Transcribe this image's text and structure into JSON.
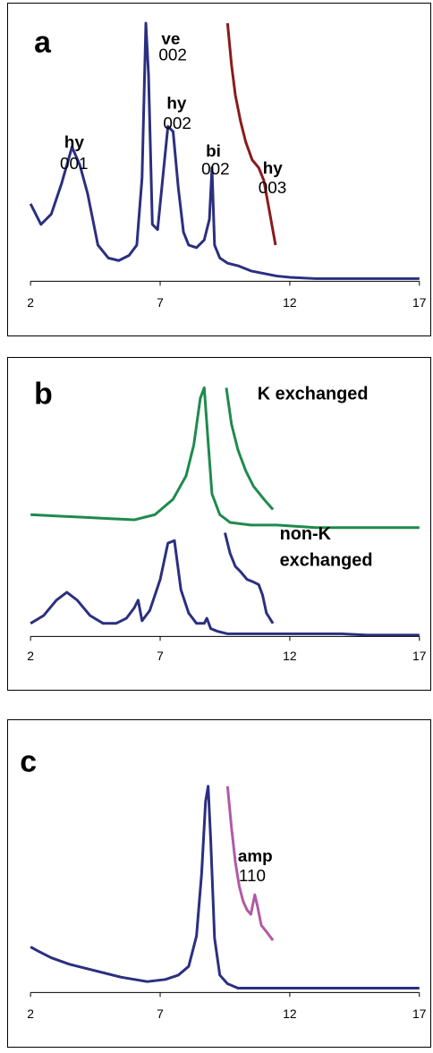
{
  "chart_data": [
    {
      "panel_letter": "a",
      "type": "line",
      "xlim": [
        2,
        17
      ],
      "x_ticks": [
        "2",
        "7",
        "12",
        "17"
      ],
      "grid": false,
      "series": [
        {
          "color": "#2b2f7f",
          "x": [
            2.0,
            2.4,
            2.8,
            3.2,
            3.6,
            3.9,
            4.2,
            4.6,
            5.0,
            5.4,
            5.8,
            6.1,
            6.3,
            6.45,
            6.55,
            6.7,
            6.9,
            7.1,
            7.3,
            7.5,
            7.7,
            7.9,
            8.1,
            8.4,
            8.7,
            8.9,
            9.0,
            9.1,
            9.3,
            9.6,
            10.0,
            10.5,
            11.0,
            11.5,
            12.0,
            13.0,
            14.0,
            15.0,
            16.0,
            17.0
          ],
          "y": [
            0.3,
            0.22,
            0.26,
            0.38,
            0.52,
            0.45,
            0.34,
            0.14,
            0.09,
            0.08,
            0.1,
            0.14,
            0.4,
            1.0,
            0.8,
            0.22,
            0.2,
            0.4,
            0.6,
            0.58,
            0.36,
            0.19,
            0.14,
            0.13,
            0.16,
            0.24,
            0.44,
            0.14,
            0.09,
            0.07,
            0.06,
            0.04,
            0.03,
            0.02,
            0.015,
            0.01,
            0.01,
            0.01,
            0.01,
            0.01
          ]
        },
        {
          "color": "#8b1a1a",
          "x": [
            9.6,
            9.75,
            9.9,
            10.1,
            10.3,
            10.55,
            10.8,
            11.0,
            11.2,
            11.45
          ],
          "y": [
            1.0,
            0.84,
            0.72,
            0.62,
            0.54,
            0.47,
            0.44,
            0.39,
            0.28,
            0.14
          ]
        }
      ],
      "annotations": [
        {
          "line1": "hy",
          "line2": "001"
        },
        {
          "line1": "ve",
          "line2": "002"
        },
        {
          "line1": "hy",
          "line2": "002"
        },
        {
          "line1": "bi",
          "line2": "002"
        },
        {
          "line1": "hy",
          "line2": "003"
        }
      ]
    },
    {
      "panel_letter": "b",
      "type": "line",
      "xlim": [
        2,
        17
      ],
      "x_ticks": [
        "2",
        "7",
        "12",
        "17"
      ],
      "grid": false,
      "series": [
        {
          "color": "#1f8a4c",
          "x": [
            2.0,
            3.0,
            4.0,
            5.0,
            6.0,
            6.8,
            7.5,
            8.0,
            8.3,
            8.55,
            8.7,
            8.85,
            9.0,
            9.3,
            9.7,
            10.5,
            11.5,
            13.0,
            15.0,
            17.0
          ],
          "y": [
            0.47,
            0.465,
            0.46,
            0.455,
            0.45,
            0.47,
            0.53,
            0.62,
            0.74,
            0.92,
            0.96,
            0.75,
            0.55,
            0.47,
            0.44,
            0.43,
            0.43,
            0.42,
            0.42,
            0.42
          ]
        },
        {
          "color": "#1f8a4c",
          "x": [
            9.55,
            9.75,
            10.0,
            10.3,
            10.6,
            11.0,
            11.35
          ],
          "y": [
            0.96,
            0.82,
            0.72,
            0.64,
            0.58,
            0.53,
            0.49
          ]
        },
        {
          "color": "#2b2f7f",
          "x": [
            2.0,
            2.5,
            3.0,
            3.4,
            3.8,
            4.3,
            4.8,
            5.3,
            5.7,
            6.0,
            6.15,
            6.3,
            6.6,
            7.0,
            7.3,
            7.55,
            7.8,
            8.1,
            8.4,
            8.7,
            8.8,
            8.95,
            9.2,
            9.6,
            10.0,
            11.0,
            12.0,
            13.0,
            14.0,
            15.0,
            16.0,
            17.0
          ],
          "y": [
            0.05,
            0.08,
            0.14,
            0.17,
            0.14,
            0.08,
            0.05,
            0.05,
            0.07,
            0.11,
            0.14,
            0.06,
            0.1,
            0.22,
            0.36,
            0.37,
            0.18,
            0.09,
            0.05,
            0.05,
            0.07,
            0.03,
            0.02,
            0.01,
            0.01,
            0.01,
            0.01,
            0.01,
            0.01,
            0.005,
            0.005,
            0.005
          ]
        },
        {
          "color": "#2b2f7f",
          "x": [
            9.5,
            9.7,
            9.9,
            10.1,
            10.35,
            10.6,
            10.8,
            10.95,
            11.1,
            11.35
          ],
          "y": [
            0.4,
            0.32,
            0.27,
            0.25,
            0.22,
            0.21,
            0.2,
            0.16,
            0.09,
            0.05
          ]
        }
      ],
      "labels": [
        "K exchanged",
        "non-K",
        "exchanged"
      ]
    },
    {
      "panel_letter": "c",
      "type": "line",
      "xlim": [
        2,
        17
      ],
      "x_ticks": [
        "2",
        "7",
        "12",
        "17"
      ],
      "grid": false,
      "series": [
        {
          "color": "#2b2f7f",
          "x": [
            2.0,
            2.3,
            2.8,
            3.5,
            4.5,
            5.5,
            6.5,
            7.2,
            7.7,
            8.1,
            8.4,
            8.6,
            8.75,
            8.85,
            8.95,
            9.1,
            9.3,
            9.6,
            10.0,
            11.0,
            12.0,
            13.0,
            14.0,
            15.0,
            16.0,
            17.0
          ],
          "y": [
            0.21,
            0.19,
            0.16,
            0.13,
            0.1,
            0.07,
            0.05,
            0.06,
            0.08,
            0.12,
            0.26,
            0.55,
            0.88,
            0.95,
            0.7,
            0.25,
            0.08,
            0.04,
            0.02,
            0.02,
            0.02,
            0.02,
            0.02,
            0.02,
            0.02,
            0.02
          ]
        },
        {
          "color": "#b05aa6",
          "x": [
            9.6,
            9.75,
            9.9,
            10.05,
            10.2,
            10.35,
            10.5,
            10.65,
            10.75,
            10.9,
            11.1,
            11.35
          ],
          "y": [
            0.95,
            0.76,
            0.6,
            0.49,
            0.42,
            0.38,
            0.36,
            0.45,
            0.4,
            0.31,
            0.28,
            0.24
          ]
        }
      ],
      "annotations": [
        {
          "line1": "amp",
          "line2": "110"
        }
      ]
    }
  ]
}
